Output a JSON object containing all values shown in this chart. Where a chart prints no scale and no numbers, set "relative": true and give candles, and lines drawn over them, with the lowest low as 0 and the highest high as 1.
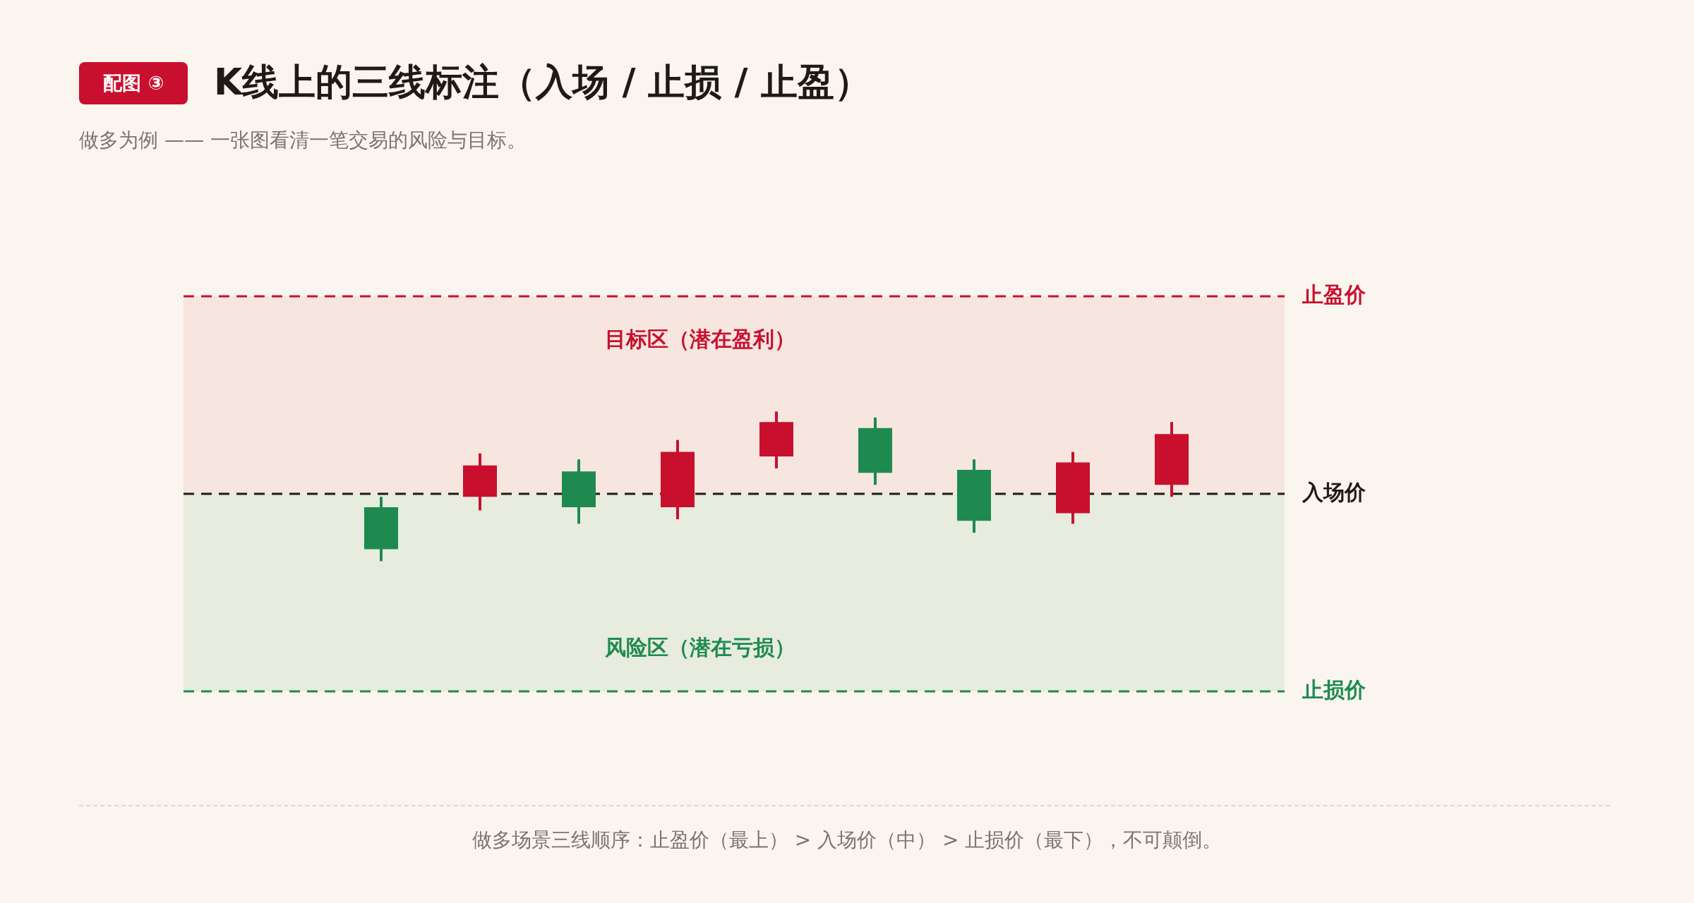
{
  "chart_data": {
    "type": "candlestick",
    "title": "K线上的三线标注（入场 / 止损 / 止盈）",
    "subtitle": "做多为例 —— 一张图看清一笔交易的风险与目标。",
    "annotations": [
      "配图 ③",
      "做多场景三线顺序：止盈价（最上） > 入场价（中） > 止损价（最下），不可颠倒。"
    ],
    "relative": true,
    "categories": [
      null,
      null,
      null,
      null,
      null,
      null,
      null,
      null,
      null
    ],
    "ohlc": [
      [
        0.36,
        0.43,
        0,
        0.08
      ],
      [
        0.43,
        0.72,
        0.34,
        0.64
      ],
      [
        0.6,
        0.68,
        0.25,
        0.36
      ],
      [
        0.36,
        0.81,
        0.28,
        0.73
      ],
      [
        0.7,
        1,
        0.62,
        0.93
      ],
      [
        0.89,
        0.96,
        0.51,
        0.59
      ],
      [
        0.61,
        0.68,
        0.19,
        0.27
      ],
      [
        0.32,
        0.73,
        0.25,
        0.66
      ],
      [
        0.51,
        0.93,
        0.43,
        0.85
      ]
    ],
    "colors": [
      "#1e8a50",
      "#c8102e",
      "#1e8a50",
      "#c8102e",
      "#c8102e",
      "#1e8a50",
      "#1e8a50",
      "#c8102e",
      "#c8102e"
    ],
    "ref_lines": [
      {
        "axis": "y",
        "value": 1.77,
        "label": "止盈价",
        "color": "#c8102e",
        "line_style": "dashed"
      },
      {
        "axis": "y",
        "value": 0.45,
        "label": "入场价",
        "color": "#1f1a17",
        "line_style": "dashed"
      },
      {
        "axis": "y",
        "value": -0.87,
        "label": "止损价",
        "color": "#1e8a50",
        "line_style": "dashed"
      }
    ],
    "bands": [
      {
        "axis": "y",
        "from": 0.45,
        "to": 1.77,
        "label": "目标区（潜在盈利）",
        "color": "#f6e6df"
      },
      {
        "axis": "y",
        "from": -0.87,
        "to": 0.45,
        "label": "风险区（潜在亏损）",
        "color": "#e7ecdf"
      }
    ]
  }
}
